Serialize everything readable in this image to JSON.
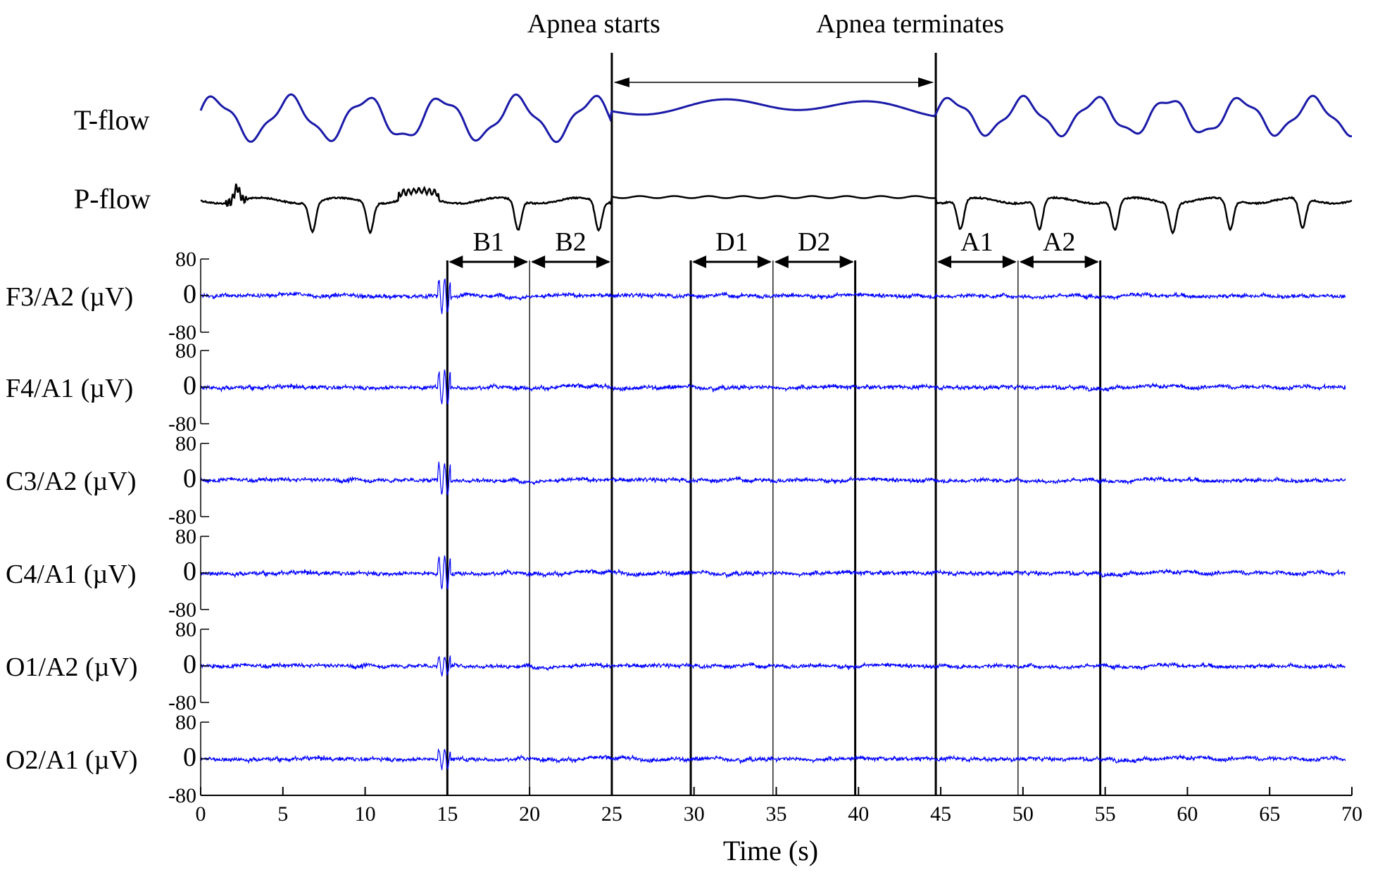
{
  "chart_data": {
    "type": "line",
    "xlabel": "Time (s)",
    "xlim": [
      0,
      70
    ],
    "x_ticks": [
      0,
      5,
      10,
      15,
      20,
      25,
      30,
      35,
      40,
      45,
      50,
      55,
      60,
      65,
      70
    ],
    "eeg_ylim": [
      -80,
      80
    ],
    "eeg_yticks": [
      "80",
      "0",
      "-80"
    ],
    "flow_series": [
      {
        "name": "T-flow",
        "color": "#1a1aa8"
      },
      {
        "name": "P-flow",
        "color": "#000000"
      }
    ],
    "eeg_channels": [
      {
        "name": "F3/A2 (µV)"
      },
      {
        "name": "F4/A1 (µV)"
      },
      {
        "name": "C3/A2 (µV)"
      },
      {
        "name": "C4/A1 (µV)"
      },
      {
        "name": "O1/A2 (µV)"
      },
      {
        "name": "O2/A1 (µV)"
      }
    ],
    "eeg_color": "#0000ff",
    "events": [
      {
        "label": "Apnea starts",
        "x": 25
      },
      {
        "label": "Apnea terminates",
        "x": 44.7
      }
    ],
    "segments": [
      {
        "label": "B1",
        "x0": 15,
        "x1": 20
      },
      {
        "label": "B2",
        "x0": 20,
        "x1": 25
      },
      {
        "label": "D1",
        "x0": 29.8,
        "x1": 34.8
      },
      {
        "label": "D2",
        "x0": 34.8,
        "x1": 39.8
      },
      {
        "label": "A1",
        "x0": 44.7,
        "x1": 49.7
      },
      {
        "label": "A2",
        "x0": 49.7,
        "x1": 54.7
      }
    ],
    "grid": false,
    "legend": "none"
  }
}
